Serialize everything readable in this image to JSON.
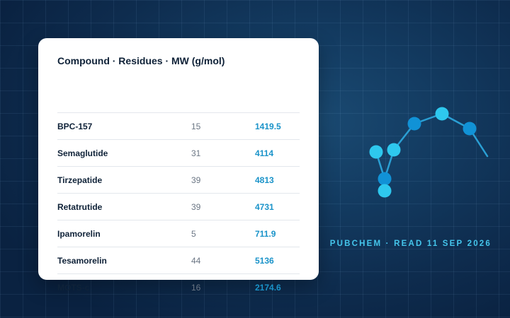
{
  "table": {
    "header": "Compound · Residues · MW (g/mol)",
    "rows": [
      {
        "name": "BPC-157",
        "residues": "15",
        "mw": "1419.5"
      },
      {
        "name": "Semaglutide",
        "residues": "31",
        "mw": "4114"
      },
      {
        "name": "Tirzepatide",
        "residues": "39",
        "mw": "4813"
      },
      {
        "name": "Retatrutide",
        "residues": "39",
        "mw": "4731"
      },
      {
        "name": "Ipamorelin",
        "residues": "5",
        "mw": "711.9"
      },
      {
        "name": "Tesamorelin",
        "residues": "44",
        "mw": "5136"
      },
      {
        "name": "MOTS-c",
        "residues": "16",
        "mw": "2174.6"
      }
    ]
  },
  "source_label": "PUBCHEM · READ 11 SEP 2026",
  "colors": {
    "background": "#0e2c4e",
    "card": "#ffffff",
    "accent_text": "#45c6ec",
    "mw_value": "#1a93c9",
    "node_light": "#2ec8ee",
    "node_dark": "#1192d6"
  },
  "decoration": {
    "icon": "molecule-icon"
  }
}
